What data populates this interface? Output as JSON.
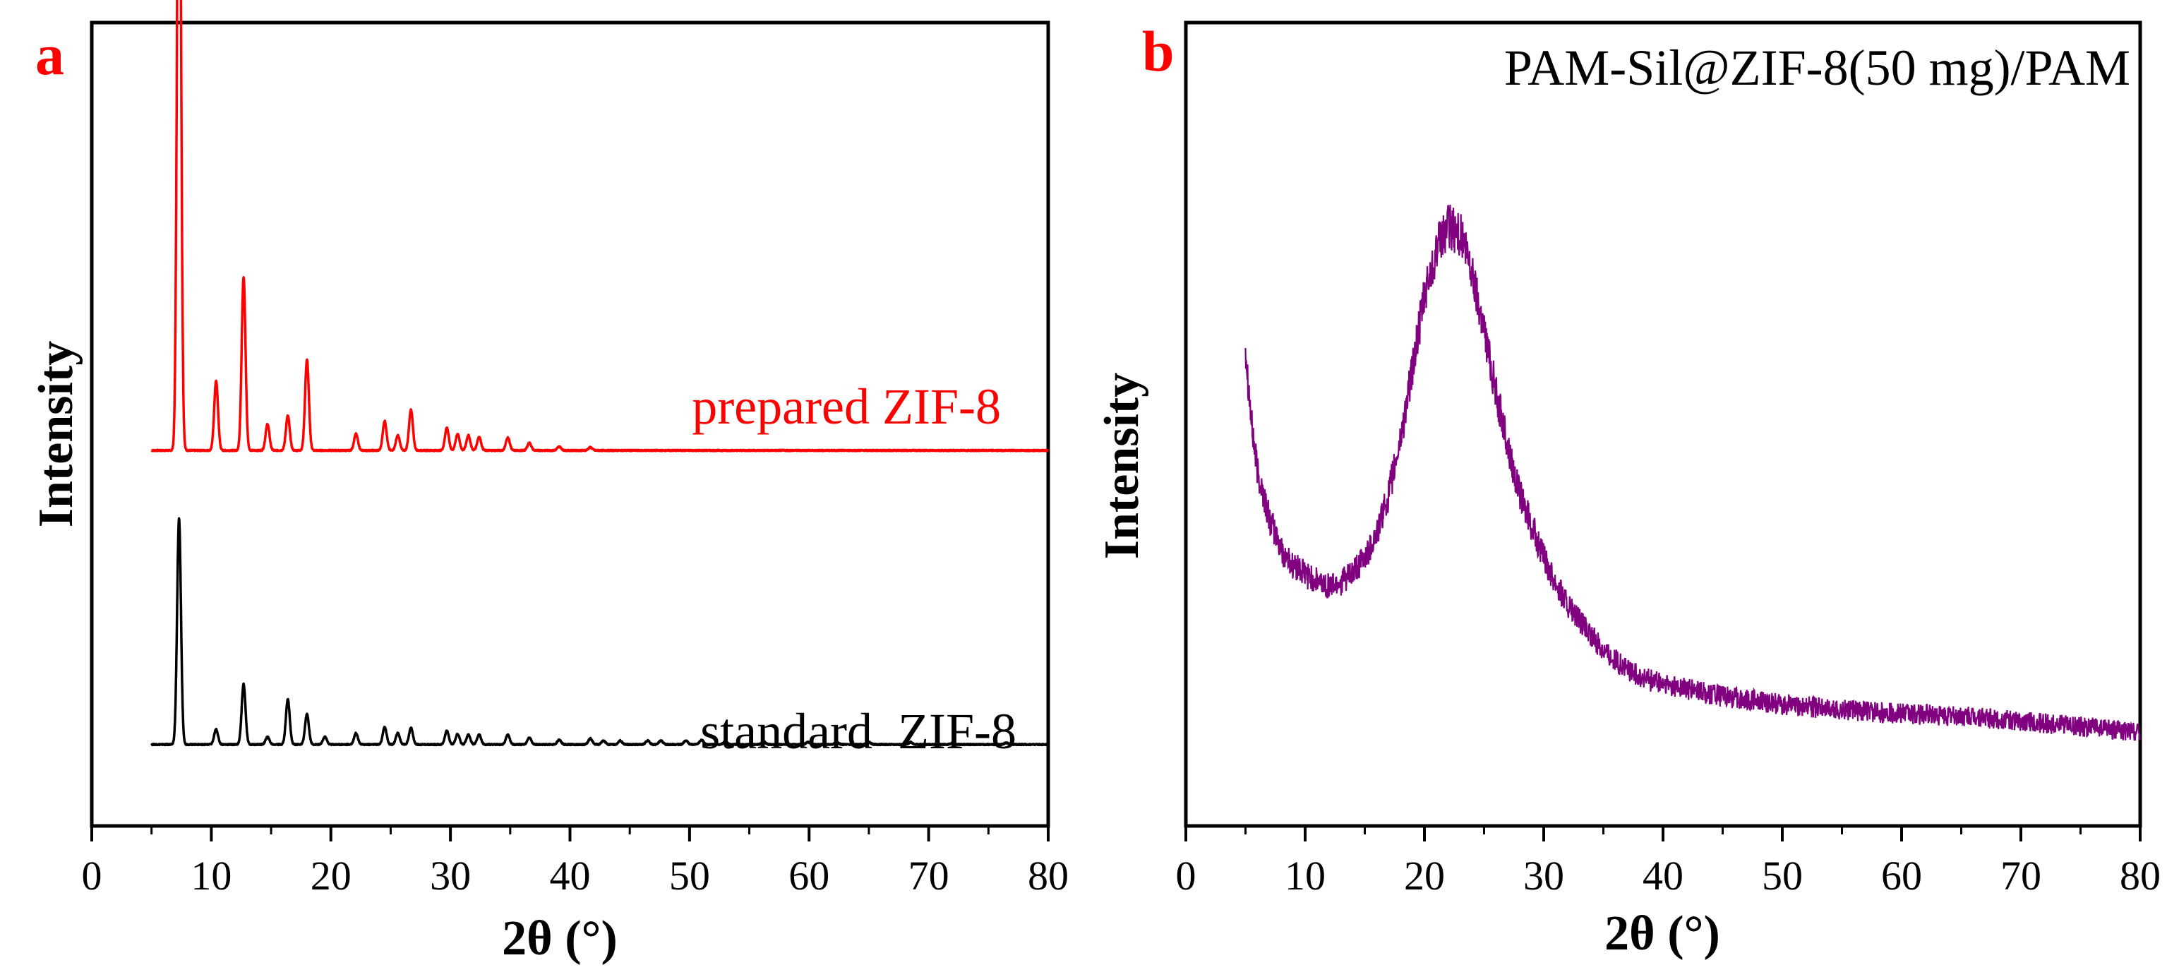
{
  "figure": {
    "panels": [
      {
        "label": "a",
        "label_color": "#ff0000"
      },
      {
        "label": "b",
        "label_color": "#ff0000"
      }
    ]
  },
  "chart_data": [
    {
      "type": "line",
      "panel": "a",
      "title": "",
      "xlabel": "2θ (°)",
      "ylabel": "Intensity",
      "xlim": [
        0,
        80
      ],
      "x_ticks": [
        0,
        10,
        20,
        30,
        40,
        50,
        60,
        70,
        80
      ],
      "y_ticks_shown": false,
      "ylim": [
        0,
        100
      ],
      "series": [
        {
          "name": "prepared ZIF-8",
          "color": "#ff0000",
          "x_start": 5,
          "x_end": 80,
          "baseline": 44,
          "peaks": [
            {
              "x": 7.3,
              "height": 100
            },
            {
              "x": 10.4,
              "height": 9.2
            },
            {
              "x": 12.7,
              "height": 23
            },
            {
              "x": 14.7,
              "height": 3.5
            },
            {
              "x": 16.4,
              "height": 4.6
            },
            {
              "x": 18.0,
              "height": 12
            },
            {
              "x": 22.1,
              "height": 2.2
            },
            {
              "x": 24.5,
              "height": 3.9
            },
            {
              "x": 25.6,
              "height": 2
            },
            {
              "x": 26.7,
              "height": 5.4
            },
            {
              "x": 29.7,
              "height": 3
            },
            {
              "x": 30.6,
              "height": 2.2
            },
            {
              "x": 31.5,
              "height": 2
            },
            {
              "x": 32.4,
              "height": 1.8
            },
            {
              "x": 34.8,
              "height": 1.7
            },
            {
              "x": 36.6,
              "height": 1
            },
            {
              "x": 39.1,
              "height": 0.5
            },
            {
              "x": 41.7,
              "height": 0.4
            }
          ]
        },
        {
          "name": "standard  ZIF-8",
          "color": "#000000",
          "x_start": 5,
          "x_end": 80,
          "baseline": 5,
          "peaks": [
            {
              "x": 7.3,
              "height": 30
            },
            {
              "x": 10.4,
              "height": 2
            },
            {
              "x": 12.7,
              "height": 8
            },
            {
              "x": 14.7,
              "height": 1
            },
            {
              "x": 16.4,
              "height": 6
            },
            {
              "x": 18.0,
              "height": 4
            },
            {
              "x": 19.5,
              "height": 1
            },
            {
              "x": 22.1,
              "height": 1.5
            },
            {
              "x": 24.5,
              "height": 2.3
            },
            {
              "x": 25.6,
              "height": 1.5
            },
            {
              "x": 26.7,
              "height": 2.2
            },
            {
              "x": 29.7,
              "height": 1.8
            },
            {
              "x": 30.6,
              "height": 1.4
            },
            {
              "x": 31.5,
              "height": 1.3
            },
            {
              "x": 32.4,
              "height": 1.3
            },
            {
              "x": 34.8,
              "height": 1.3
            },
            {
              "x": 36.6,
              "height": 0.9
            },
            {
              "x": 39.1,
              "height": 0.6
            },
            {
              "x": 41.7,
              "height": 0.8
            },
            {
              "x": 42.8,
              "height": 0.5
            },
            {
              "x": 44.2,
              "height": 0.5
            },
            {
              "x": 46.5,
              "height": 0.5
            },
            {
              "x": 47.6,
              "height": 0.5
            },
            {
              "x": 49.7,
              "height": 0.5
            },
            {
              "x": 51.0,
              "height": 0.6
            },
            {
              "x": 53.0,
              "height": 0.4
            },
            {
              "x": 56.2,
              "height": 0.4
            },
            {
              "x": 59.9,
              "height": 0.3
            },
            {
              "x": 62.3,
              "height": 0.3
            },
            {
              "x": 65.0,
              "height": 0.3
            },
            {
              "x": 68.5,
              "height": 0.3
            },
            {
              "x": 72.0,
              "height": 0.2
            },
            {
              "x": 76.5,
              "height": 0.2
            }
          ]
        }
      ]
    },
    {
      "type": "line",
      "panel": "b",
      "title": "",
      "xlabel": "2θ (°)",
      "ylabel": "Intensity",
      "xlim": [
        0,
        80
      ],
      "x_ticks": [
        0,
        10,
        20,
        30,
        40,
        50,
        60,
        70,
        80
      ],
      "y_ticks_shown": false,
      "ylim": [
        0,
        100
      ],
      "series": [
        {
          "name": "PAM-Sil@ZIF-8(50 mg)/PAM",
          "color": "#800080",
          "noise": 1.6,
          "points": [
            [
              5.0,
              60
            ],
            [
              5.5,
              50
            ],
            [
              6,
              44
            ],
            [
              7,
              38
            ],
            [
              8,
              34
            ],
            [
              9,
              32
            ],
            [
              10,
              31
            ],
            [
              11,
              30
            ],
            [
              12,
              29.5
            ],
            [
              13,
              30
            ],
            [
              14,
              31
            ],
            [
              15,
              33
            ],
            [
              16,
              36
            ],
            [
              17,
              41
            ],
            [
              18,
              48
            ],
            [
              19,
              57
            ],
            [
              20,
              66
            ],
            [
              21,
              72
            ],
            [
              22,
              75
            ],
            [
              23,
              74
            ],
            [
              24,
              69
            ],
            [
              25,
              62
            ],
            [
              26,
              54
            ],
            [
              27,
              47
            ],
            [
              28,
              41
            ],
            [
              30,
              33
            ],
            [
              32,
              27
            ],
            [
              34,
              23
            ],
            [
              36,
              20
            ],
            [
              38,
              18
            ],
            [
              40,
              17
            ],
            [
              45,
              15.5
            ],
            [
              50,
              14.5
            ],
            [
              55,
              13.8
            ],
            [
              60,
              13.3
            ],
            [
              65,
              13
            ],
            [
              70,
              12.3
            ],
            [
              75,
              11.7
            ],
            [
              80,
              11
            ]
          ]
        }
      ]
    }
  ]
}
